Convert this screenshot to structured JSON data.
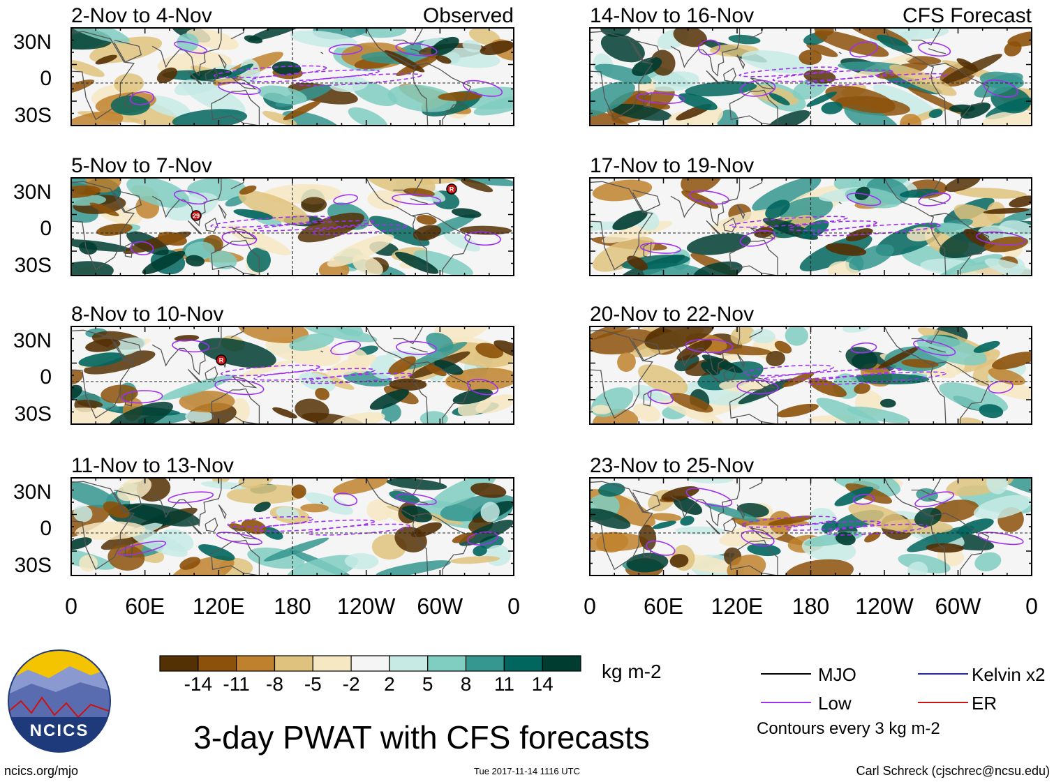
{
  "panels_left": [
    {
      "date_label": "2-Nov to 4-Nov",
      "corner_label": "Observed"
    },
    {
      "date_label": "5-Nov to 7-Nov",
      "corner_label": ""
    },
    {
      "date_label": "8-Nov to 10-Nov",
      "corner_label": ""
    },
    {
      "date_label": "11-Nov to 13-Nov",
      "corner_label": ""
    }
  ],
  "panels_right": [
    {
      "date_label": "14-Nov to 16-Nov",
      "corner_label": "CFS Forecast"
    },
    {
      "date_label": "17-Nov to 19-Nov",
      "corner_label": ""
    },
    {
      "date_label": "20-Nov to 22-Nov",
      "corner_label": ""
    },
    {
      "date_label": "23-Nov to 25-Nov",
      "corner_label": ""
    }
  ],
  "lat_labels": [
    "30N",
    "0",
    "30S"
  ],
  "lon_labels": [
    "0",
    "60E",
    "120E",
    "180",
    "120W",
    "60W",
    "0"
  ],
  "colorbar": {
    "colors": [
      "#543005",
      "#8c510a",
      "#bf812d",
      "#dfc27d",
      "#f6e8c3",
      "#f5f5f5",
      "#c7eae5",
      "#80cdc1",
      "#35978f",
      "#01665e",
      "#003c30"
    ],
    "tick_labels": [
      "-14",
      "-11",
      "-8",
      "-5",
      "-2",
      "2",
      "5",
      "8",
      "11",
      "14"
    ],
    "unit": "kg m-2"
  },
  "legend": {
    "items": [
      {
        "label": "MJO",
        "color": "#000000"
      },
      {
        "label": "Kelvin x2",
        "color": "#2222cc"
      },
      {
        "label": "Low",
        "color": "#a030f0"
      },
      {
        "label": "ER",
        "color": "#cc1111"
      }
    ],
    "note": "Contours every 3 kg m-2"
  },
  "title": "3-day PWAT with CFS forecasts",
  "logo_text": "NCICS",
  "url": "ncics.org/mjo",
  "timestamp": "Tue 2017-11-14 1116 UTC",
  "credit": "Carl Schreck (cjschrec@ncsu.edu)",
  "storm_markers": [
    {
      "panel": "left-1",
      "label": "29"
    },
    {
      "panel": "left-1",
      "label": "R"
    },
    {
      "panel": "left-2",
      "label": "R"
    }
  ]
}
